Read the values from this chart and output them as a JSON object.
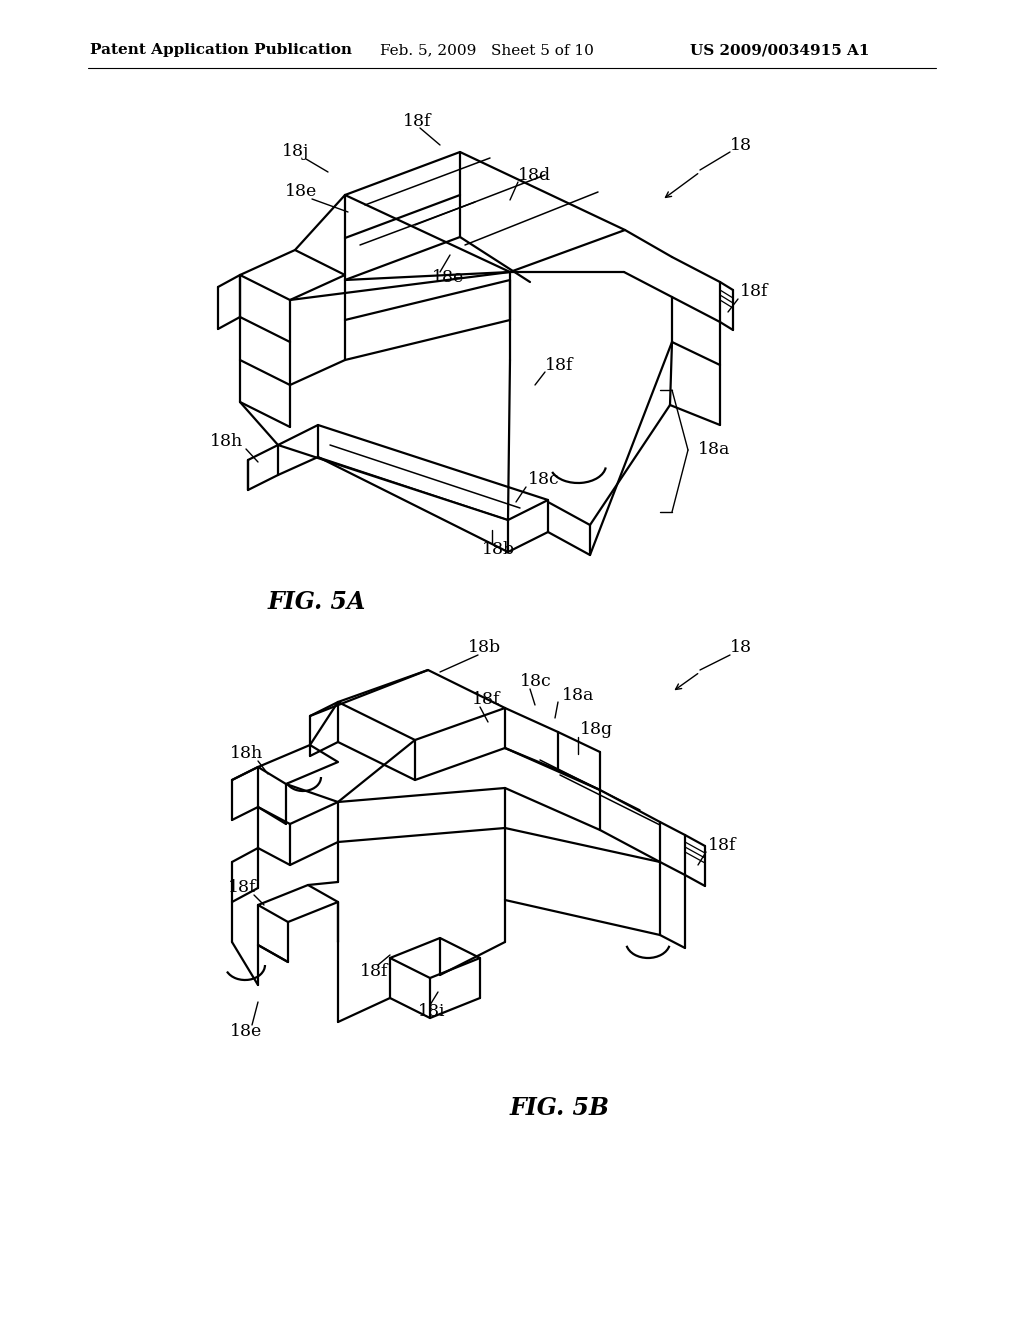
{
  "background_color": "#ffffff",
  "header_left": "Patent Application Publication",
  "header_center": "Feb. 5, 2009   Sheet 5 of 10",
  "header_right": "US 2009/0034915 A1",
  "header_fontsize": 11,
  "fig5a_label": "FIG. 5A",
  "fig5b_label": "FIG. 5B"
}
